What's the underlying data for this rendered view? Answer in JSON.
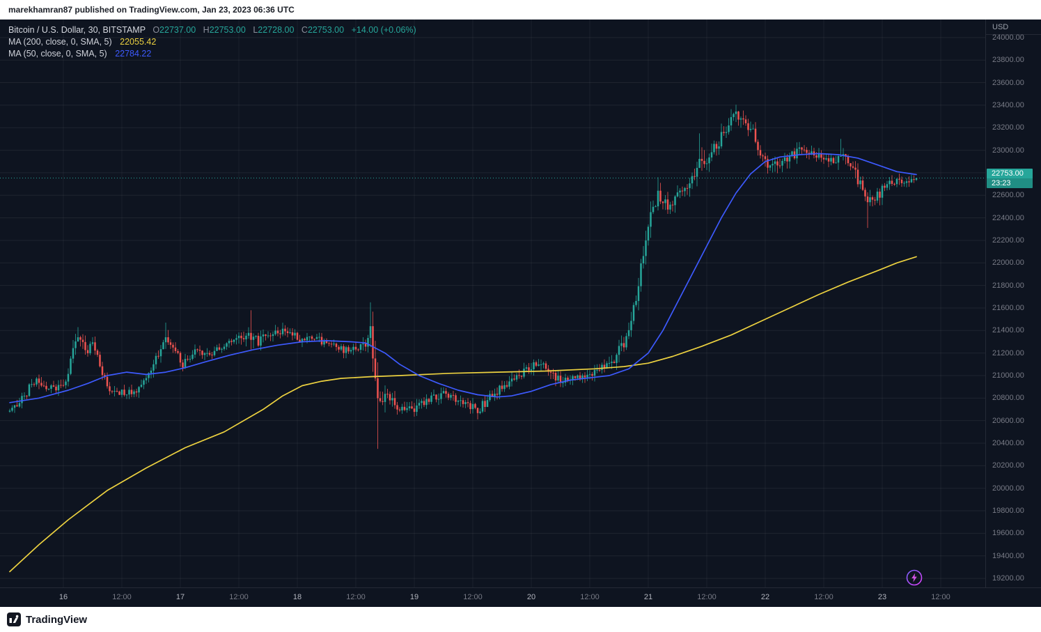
{
  "header": {
    "text": "marekhamran87 published on TradingView.com, Jan 23, 2023 06:36 UTC"
  },
  "legend": {
    "symbol_title": "Bitcoin / U.S. Dollar, 30, BITSTAMP",
    "ohlc": [
      {
        "k": "O",
        "v": "22737.00"
      },
      {
        "k": "H",
        "v": "22753.00"
      },
      {
        "k": "L",
        "v": "22728.00"
      },
      {
        "k": "C",
        "v": "22753.00"
      }
    ],
    "change": "+14.00 (+0.06%)",
    "ma200": {
      "label": "MA (200, close, 0, SMA, 5)",
      "value": "22055.42"
    },
    "ma50": {
      "label": "MA (50, close, 0, SMA, 5)",
      "value": "22784.22"
    }
  },
  "price_axis": {
    "currency": "USD",
    "last_price_text": "22753.00",
    "countdown": "23:23"
  },
  "footer": {
    "brand": "TradingView"
  },
  "chart_data": {
    "type": "candlestick",
    "title": "Bitcoin / U.S. Dollar, 30, BITSTAMP",
    "interval_minutes": 30,
    "exchange": "BITSTAMP",
    "last": {
      "o": 22737.0,
      "h": 22753.0,
      "l": 22728.0,
      "c": 22753.0,
      "change": 14.0,
      "change_pct": 0.06
    },
    "last_price": 22753.0,
    "countdown": "23:23",
    "bars": 372,
    "y_domain": [
      19120,
      24160
    ],
    "up_color": "#26a69a",
    "down_color": "#ef5350",
    "price_ticks": [
      24000,
      23800,
      23600,
      23400,
      23200,
      23000,
      22800,
      22600,
      22400,
      22200,
      22000,
      21800,
      21600,
      21400,
      21200,
      21000,
      20800,
      20600,
      20400,
      20200,
      20000,
      19800,
      19600,
      19400,
      19200
    ],
    "time_ticks": [
      {
        "t": 22,
        "label": "16",
        "major": true
      },
      {
        "t": 46,
        "label": "12:00"
      },
      {
        "t": 70,
        "label": "17",
        "major": true
      },
      {
        "t": 94,
        "label": "12:00"
      },
      {
        "t": 118,
        "label": "18",
        "major": true
      },
      {
        "t": 142,
        "label": "12:00"
      },
      {
        "t": 166,
        "label": "19",
        "major": true
      },
      {
        "t": 190,
        "label": "12:00"
      },
      {
        "t": 214,
        "label": "20",
        "major": true
      },
      {
        "t": 238,
        "label": "12:00"
      },
      {
        "t": 262,
        "label": "21",
        "major": true
      },
      {
        "t": 286,
        "label": "12:00"
      },
      {
        "t": 310,
        "label": "22",
        "major": true
      },
      {
        "t": 334,
        "label": "12:00"
      },
      {
        "t": 358,
        "label": "23",
        "major": true
      },
      {
        "t": 382,
        "label": "12:00"
      }
    ],
    "price_keyframes": [
      [
        0,
        20680,
        100
      ],
      [
        6,
        20820,
        120
      ],
      [
        10,
        20950,
        120
      ],
      [
        16,
        20880,
        100
      ],
      [
        23,
        20920,
        100
      ],
      [
        26,
        21250,
        150
      ],
      [
        28,
        21380,
        130
      ],
      [
        31,
        21200,
        120
      ],
      [
        34,
        21300,
        110
      ],
      [
        38,
        21000,
        120
      ],
      [
        41,
        20850,
        110
      ],
      [
        48,
        20850,
        95
      ],
      [
        54,
        20900,
        95
      ],
      [
        60,
        21150,
        130
      ],
      [
        64,
        21350,
        140
      ],
      [
        67,
        21250,
        110
      ],
      [
        71,
        21100,
        100
      ],
      [
        76,
        21200,
        95
      ],
      [
        82,
        21180,
        95
      ],
      [
        88,
        21260,
        95
      ],
      [
        94,
        21320,
        100
      ],
      [
        99,
        21360,
        180
      ],
      [
        102,
        21300,
        110
      ],
      [
        108,
        21380,
        110
      ],
      [
        113,
        21400,
        110
      ],
      [
        119,
        21330,
        100
      ],
      [
        126,
        21320,
        95
      ],
      [
        133,
        21250,
        95
      ],
      [
        140,
        21220,
        95
      ],
      [
        146,
        21280,
        130
      ],
      [
        148,
        21430,
        200
      ],
      [
        150,
        20950,
        320
      ],
      [
        152,
        20680,
        300
      ],
      [
        155,
        20820,
        150
      ],
      [
        160,
        20720,
        120
      ],
      [
        166,
        20690,
        120
      ],
      [
        172,
        20780,
        110
      ],
      [
        178,
        20830,
        100
      ],
      [
        186,
        20760,
        110
      ],
      [
        192,
        20700,
        130
      ],
      [
        198,
        20820,
        110
      ],
      [
        205,
        20950,
        115
      ],
      [
        212,
        21030,
        125
      ],
      [
        217,
        21120,
        135
      ],
      [
        222,
        21000,
        115
      ],
      [
        228,
        20950,
        105
      ],
      [
        235,
        21000,
        105
      ],
      [
        242,
        21050,
        105
      ],
      [
        248,
        21150,
        125
      ],
      [
        253,
        21330,
        150
      ],
      [
        257,
        21650,
        200
      ],
      [
        260,
        22050,
        260
      ],
      [
        263,
        22420,
        230
      ],
      [
        266,
        22600,
        160
      ],
      [
        270,
        22520,
        140
      ],
      [
        275,
        22620,
        130
      ],
      [
        280,
        22740,
        160
      ],
      [
        283,
        22930,
        220
      ],
      [
        286,
        22900,
        180
      ],
      [
        290,
        23050,
        170
      ],
      [
        294,
        23180,
        160
      ],
      [
        298,
        23300,
        150
      ],
      [
        302,
        23230,
        150
      ],
      [
        305,
        23140,
        160
      ],
      [
        308,
        22960,
        170
      ],
      [
        311,
        22830,
        160
      ],
      [
        315,
        22860,
        140
      ],
      [
        320,
        22950,
        130
      ],
      [
        326,
        23000,
        115
      ],
      [
        332,
        22950,
        105
      ],
      [
        337,
        22900,
        125
      ],
      [
        341,
        22970,
        150
      ],
      [
        345,
        22850,
        140
      ],
      [
        349,
        22700,
        160
      ],
      [
        352,
        22500,
        180
      ],
      [
        355,
        22570,
        150
      ],
      [
        359,
        22680,
        125
      ],
      [
        364,
        22730,
        105
      ],
      [
        368,
        22720,
        95
      ],
      [
        372,
        22753,
        70
      ]
    ],
    "spikes": [
      {
        "t": 28,
        "high": 21430
      },
      {
        "t": 64,
        "high": 21470
      },
      {
        "t": 99,
        "high": 21580
      },
      {
        "t": 148,
        "high": 21650
      },
      {
        "t": 151,
        "low": 20350
      },
      {
        "t": 266,
        "high": 22760
      },
      {
        "t": 283,
        "high": 23150
      },
      {
        "t": 298,
        "high": 23400
      },
      {
        "t": 341,
        "high": 23100
      },
      {
        "t": 352,
        "low": 22310
      }
    ],
    "ma200": {
      "name": "MA 200",
      "color": "#edd240",
      "last": 22055.42,
      "points": [
        [
          0,
          19260
        ],
        [
          12,
          19500
        ],
        [
          24,
          19720
        ],
        [
          40,
          19980
        ],
        [
          56,
          20180
        ],
        [
          72,
          20360
        ],
        [
          88,
          20500
        ],
        [
          104,
          20700
        ],
        [
          112,
          20820
        ],
        [
          120,
          20910
        ],
        [
          128,
          20950
        ],
        [
          136,
          20975
        ],
        [
          148,
          20990
        ],
        [
          160,
          21000
        ],
        [
          180,
          21020
        ],
        [
          200,
          21030
        ],
        [
          220,
          21040
        ],
        [
          240,
          21060
        ],
        [
          252,
          21080
        ],
        [
          262,
          21110
        ],
        [
          272,
          21170
        ],
        [
          284,
          21260
        ],
        [
          296,
          21360
        ],
        [
          308,
          21480
        ],
        [
          320,
          21600
        ],
        [
          332,
          21720
        ],
        [
          344,
          21830
        ],
        [
          356,
          21930
        ],
        [
          364,
          22000
        ],
        [
          372,
          22055
        ]
      ]
    },
    "ma50": {
      "name": "MA 50",
      "color": "#3d5afe",
      "last": 22784.22,
      "points": [
        [
          0,
          20760
        ],
        [
          12,
          20800
        ],
        [
          24,
          20870
        ],
        [
          32,
          20930
        ],
        [
          40,
          21000
        ],
        [
          48,
          21030
        ],
        [
          56,
          21010
        ],
        [
          64,
          21030
        ],
        [
          72,
          21070
        ],
        [
          80,
          21120
        ],
        [
          90,
          21180
        ],
        [
          100,
          21230
        ],
        [
          110,
          21270
        ],
        [
          120,
          21300
        ],
        [
          130,
          21310
        ],
        [
          140,
          21300
        ],
        [
          146,
          21290
        ],
        [
          154,
          21200
        ],
        [
          160,
          21100
        ],
        [
          168,
          21000
        ],
        [
          176,
          20930
        ],
        [
          184,
          20870
        ],
        [
          192,
          20830
        ],
        [
          200,
          20810
        ],
        [
          206,
          20820
        ],
        [
          214,
          20860
        ],
        [
          222,
          20920
        ],
        [
          230,
          20960
        ],
        [
          238,
          20980
        ],
        [
          246,
          21000
        ],
        [
          254,
          21060
        ],
        [
          262,
          21200
        ],
        [
          268,
          21400
        ],
        [
          274,
          21650
        ],
        [
          280,
          21900
        ],
        [
          286,
          22150
        ],
        [
          292,
          22400
        ],
        [
          298,
          22620
        ],
        [
          304,
          22790
        ],
        [
          310,
          22900
        ],
        [
          316,
          22940
        ],
        [
          324,
          22960
        ],
        [
          332,
          22970
        ],
        [
          340,
          22960
        ],
        [
          348,
          22930
        ],
        [
          356,
          22870
        ],
        [
          364,
          22810
        ],
        [
          372,
          22784
        ]
      ]
    }
  }
}
